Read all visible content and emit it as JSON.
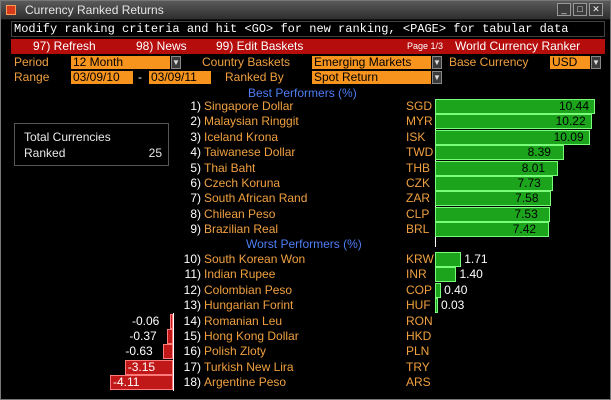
{
  "window": {
    "title": "Currency Ranked Returns"
  },
  "command_line": "Modify ranking criteria and hit <GO> for new ranking, <PAGE> for tabular data",
  "menu_bar": {
    "refresh": "97) Refresh",
    "news": "98) News",
    "edit_baskets": "99) Edit Baskets",
    "page": "Page 1/3",
    "title": "World Currency Ranker"
  },
  "settings": {
    "period_label": "Period",
    "period_value": "12 Month",
    "country_baskets_label": "Country Baskets",
    "country_baskets_value": "Emerging Markets",
    "base_currency_label": "Base Currency",
    "base_currency_value": "USD",
    "range_label": "Range",
    "range_start": "03/09/10",
    "range_sep": "-",
    "range_end": "03/09/11",
    "ranked_by_label": "Ranked By",
    "ranked_by_value": "Spot Return"
  },
  "totals": {
    "label_line1": "Total Currencies",
    "label_line2": "Ranked",
    "count": "25"
  },
  "best_header": "Best Performers  (%)",
  "worst_header": "Worst Performers  (%)",
  "chart_data": {
    "type": "bar",
    "categories": [
      "Singapore Dollar",
      "Malaysian Ringgit",
      "Iceland Krona",
      "Taiwanese Dollar",
      "Thai Baht",
      "Czech Koruna",
      "South African Rand",
      "Chilean Peso",
      "Brazilian Real",
      "South Korean Won",
      "Indian Rupee",
      "Colombian Peso",
      "Hungarian Forint",
      "Romanian Leu",
      "Hong Kong Dollar",
      "Polish Zloty",
      "Turkish New Lira",
      "Argentine Peso"
    ],
    "series": [
      {
        "values": [
          10.44,
          10.22,
          10.09,
          8.39,
          8.01,
          7.73,
          7.58,
          7.53,
          7.42,
          1.71,
          1.4,
          0.4,
          0.03,
          -0.06,
          -0.37,
          -0.63,
          -3.15,
          -4.11
        ]
      }
    ]
  },
  "best": [
    {
      "rank": "1)",
      "name": "Singapore Dollar",
      "code": "SGD",
      "value": 10.44,
      "label": "10.44"
    },
    {
      "rank": "2)",
      "name": "Malaysian Ringgit",
      "code": "MYR",
      "value": 10.22,
      "label": "10.22"
    },
    {
      "rank": "3)",
      "name": "Iceland Krona",
      "code": "ISK",
      "value": 10.09,
      "label": "10.09"
    },
    {
      "rank": "4)",
      "name": "Taiwanese Dollar",
      "code": "TWD",
      "value": 8.39,
      "label": "8.39"
    },
    {
      "rank": "5)",
      "name": "Thai Baht",
      "code": "THB",
      "value": 8.01,
      "label": "8.01"
    },
    {
      "rank": "6)",
      "name": "Czech Koruna",
      "code": "CZK",
      "value": 7.73,
      "label": "7.73"
    },
    {
      "rank": "7)",
      "name": "South African Rand",
      "code": "ZAR",
      "value": 7.58,
      "label": "7.58"
    },
    {
      "rank": "8)",
      "name": "Chilean Peso",
      "code": "CLP",
      "value": 7.53,
      "label": "7.53"
    },
    {
      "rank": "9)",
      "name": "Brazilian Real",
      "code": "BRL",
      "value": 7.42,
      "label": "7.42"
    }
  ],
  "worst": [
    {
      "rank": "10)",
      "name": "South Korean Won",
      "code": "KRW",
      "value": 1.71,
      "label": "1.71"
    },
    {
      "rank": "11)",
      "name": "Indian Rupee",
      "code": "INR",
      "value": 1.4,
      "label": "1.40"
    },
    {
      "rank": "12)",
      "name": "Colombian Peso",
      "code": "COP",
      "value": 0.4,
      "label": "0.40"
    },
    {
      "rank": "13)",
      "name": "Hungarian Forint",
      "code": "HUF",
      "value": 0.03,
      "label": "0.03"
    },
    {
      "rank": "14)",
      "name": "Romanian Leu",
      "code": "RON",
      "value": -0.06,
      "label": "-0.06"
    },
    {
      "rank": "15)",
      "name": "Hong Kong Dollar",
      "code": "HKD",
      "value": -0.37,
      "label": "-0.37"
    },
    {
      "rank": "16)",
      "name": "Polish Zloty",
      "code": "PLN",
      "value": -0.63,
      "label": "-0.63"
    },
    {
      "rank": "17)",
      "name": "Turkish New Lira",
      "code": "TRY",
      "value": -3.15,
      "label": "-3.15"
    },
    {
      "rank": "18)",
      "name": "Argentine Peso",
      "code": "ARS",
      "value": -4.11,
      "label": "-4.11"
    }
  ]
}
